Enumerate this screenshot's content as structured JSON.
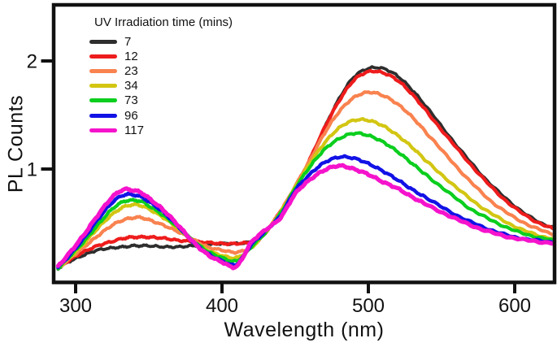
{
  "figure": {
    "background": "#ffffff"
  },
  "chart_data": {
    "type": "line",
    "title": "",
    "xlabel": "Wavelength (nm)",
    "ylabel": "PL Counts",
    "xlim": [
      288,
      628
    ],
    "ylim": [
      -0.05,
      2.56
    ],
    "x_ticks": [
      300,
      400,
      500,
      600
    ],
    "y_ticks": [
      1,
      2
    ],
    "grid": false,
    "axis_color": "#111111",
    "legend_title": "UV Irradiation time (mins)",
    "legend_position": "top-left",
    "x_nm": [
      288,
      295,
      305,
      315,
      325,
      333,
      340,
      345,
      350,
      360,
      370,
      380,
      390,
      400,
      410,
      420,
      430,
      440,
      450,
      460,
      470,
      480,
      490,
      500,
      510,
      520,
      530,
      540,
      555,
      570,
      585,
      600,
      615,
      628
    ],
    "series": [
      {
        "name": "7",
        "color": "#2e2e2e",
        "peak_nm": 505,
        "peak_value": 1.95,
        "values": [
          0.08,
          0.14,
          0.2,
          0.25,
          0.27,
          0.28,
          0.29,
          0.29,
          0.29,
          0.28,
          0.28,
          0.29,
          0.3,
          0.31,
          0.31,
          0.33,
          0.41,
          0.6,
          0.82,
          1.08,
          1.38,
          1.65,
          1.85,
          1.93,
          1.93,
          1.86,
          1.73,
          1.57,
          1.31,
          1.06,
          0.84,
          0.66,
          0.52,
          0.45
        ]
      },
      {
        "name": "12",
        "color": "#ee1c1c",
        "peak_nm": 503,
        "peak_value": 1.91,
        "values": [
          0.08,
          0.15,
          0.23,
          0.29,
          0.33,
          0.36,
          0.37,
          0.37,
          0.37,
          0.36,
          0.34,
          0.33,
          0.32,
          0.31,
          0.31,
          0.33,
          0.42,
          0.61,
          0.83,
          1.09,
          1.38,
          1.63,
          1.82,
          1.9,
          1.89,
          1.82,
          1.69,
          1.53,
          1.28,
          1.04,
          0.82,
          0.64,
          0.51,
          0.44
        ]
      },
      {
        "name": "23",
        "color": "#f9824f",
        "peak_nm": 500,
        "peak_value": 1.72,
        "values": [
          0.08,
          0.16,
          0.27,
          0.38,
          0.48,
          0.53,
          0.55,
          0.55,
          0.53,
          0.48,
          0.42,
          0.35,
          0.28,
          0.25,
          0.23,
          0.28,
          0.42,
          0.61,
          0.84,
          1.08,
          1.33,
          1.53,
          1.66,
          1.71,
          1.68,
          1.6,
          1.48,
          1.33,
          1.1,
          0.88,
          0.69,
          0.55,
          0.45,
          0.39
        ]
      },
      {
        "name": "34",
        "color": "#d3c613",
        "peak_nm": 497,
        "peak_value": 1.46,
        "values": [
          0.08,
          0.17,
          0.3,
          0.45,
          0.58,
          0.65,
          0.67,
          0.66,
          0.63,
          0.55,
          0.45,
          0.34,
          0.25,
          0.2,
          0.18,
          0.27,
          0.42,
          0.6,
          0.83,
          1.05,
          1.24,
          1.38,
          1.45,
          1.45,
          1.4,
          1.31,
          1.2,
          1.07,
          0.89,
          0.72,
          0.58,
          0.47,
          0.39,
          0.35
        ]
      },
      {
        "name": "73",
        "color": "#0bce1e",
        "peak_nm": 494,
        "peak_value": 1.33,
        "values": [
          0.08,
          0.18,
          0.32,
          0.48,
          0.63,
          0.7,
          0.71,
          0.7,
          0.66,
          0.57,
          0.46,
          0.34,
          0.24,
          0.18,
          0.15,
          0.28,
          0.42,
          0.59,
          0.82,
          1.02,
          1.18,
          1.28,
          1.33,
          1.31,
          1.25,
          1.16,
          1.05,
          0.94,
          0.78,
          0.63,
          0.52,
          0.43,
          0.37,
          0.34
        ]
      },
      {
        "name": "96",
        "color": "#1212e6",
        "peak_nm": 483,
        "peak_value": 1.12,
        "values": [
          0.09,
          0.19,
          0.35,
          0.53,
          0.69,
          0.76,
          0.76,
          0.74,
          0.7,
          0.6,
          0.47,
          0.33,
          0.22,
          0.15,
          0.12,
          0.3,
          0.43,
          0.57,
          0.8,
          0.95,
          1.06,
          1.11,
          1.1,
          1.05,
          0.98,
          0.9,
          0.81,
          0.73,
          0.61,
          0.51,
          0.43,
          0.37,
          0.34,
          0.32
        ]
      },
      {
        "name": "117",
        "color": "#f513cc",
        "peak_nm": 478,
        "peak_value": 1.03,
        "values": [
          0.1,
          0.21,
          0.38,
          0.57,
          0.74,
          0.81,
          0.8,
          0.78,
          0.73,
          0.62,
          0.48,
          0.33,
          0.21,
          0.14,
          0.1,
          0.32,
          0.44,
          0.55,
          0.77,
          0.9,
          0.99,
          1.03,
          1.0,
          0.95,
          0.88,
          0.82,
          0.74,
          0.67,
          0.57,
          0.48,
          0.41,
          0.36,
          0.33,
          0.31
        ]
      }
    ]
  }
}
